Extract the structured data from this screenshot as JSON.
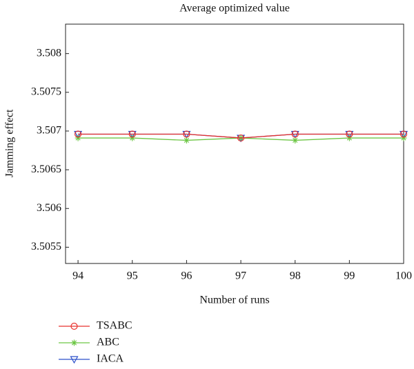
{
  "chart_data": {
    "type": "line",
    "title": "Average optimized value",
    "xlabel": "Number of runs",
    "ylabel": "Jamming effect",
    "x": [
      94,
      95,
      96,
      97,
      98,
      99,
      100
    ],
    "xlim": [
      93.77,
      100
    ],
    "xticks": [
      94,
      95,
      96,
      97,
      98,
      99,
      100
    ],
    "ylim": [
      3.50529,
      3.50838
    ],
    "yticks": [
      3.5055,
      3.506,
      3.5065,
      3.507,
      3.5075,
      3.508
    ],
    "series": [
      {
        "name": "TSABC",
        "color": "#e8322d",
        "marker": "circle",
        "values": [
          3.50696,
          3.50696,
          3.50696,
          3.50691,
          3.50696,
          3.50696,
          3.50696
        ]
      },
      {
        "name": "ABC",
        "color": "#6cc644",
        "marker": "asterisk",
        "values": [
          3.50691,
          3.50691,
          3.50688,
          3.50691,
          3.50688,
          3.50691,
          3.50691
        ]
      },
      {
        "name": "IACA",
        "color": "#2b4fc9",
        "marker": "triangle-down",
        "values": [
          3.50696,
          3.50696,
          3.50696,
          3.50691,
          3.50696,
          3.50696,
          3.50696
        ]
      }
    ],
    "legend": "bottom-left"
  }
}
